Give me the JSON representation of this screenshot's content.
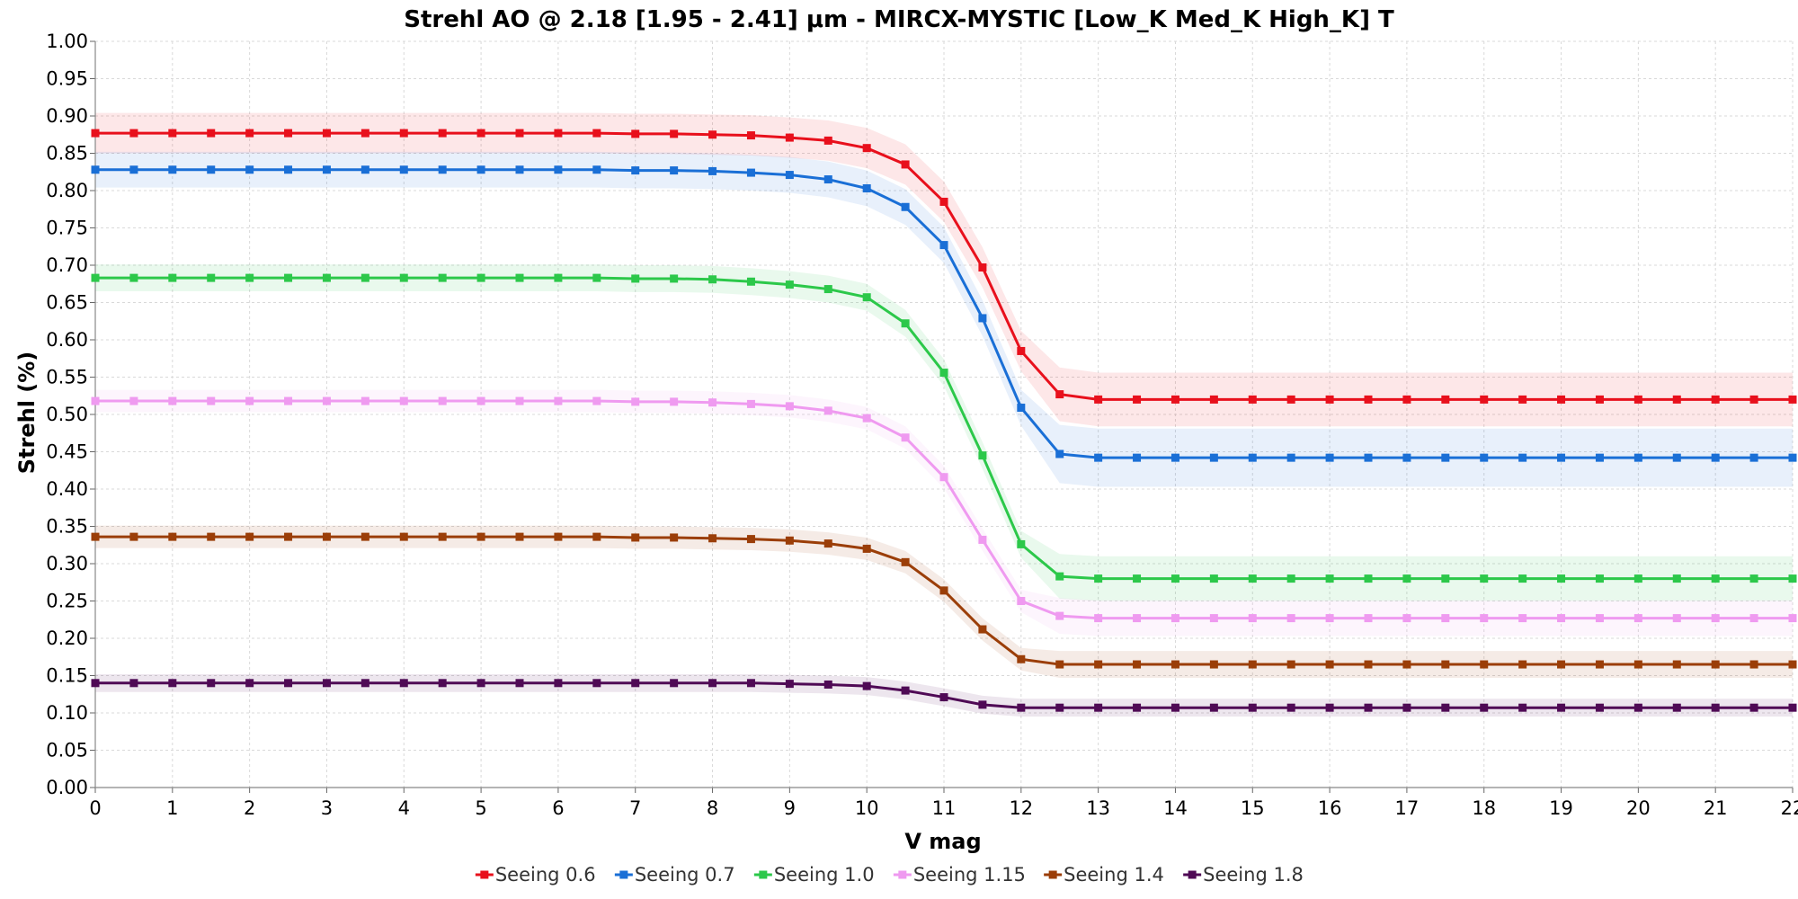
{
  "chart_data": {
    "type": "line",
    "title": "Strehl AO @ 2.18 [1.95 - 2.41] μm - MIRCX-MYSTIC [Low_K Med_K High_K] T",
    "xlabel": "V mag",
    "ylabel": "Strehl (%)",
    "xlim": [
      0,
      22
    ],
    "ylim": [
      0,
      1.0
    ],
    "x_ticks": [
      "0",
      "1",
      "2",
      "3",
      "4",
      "5",
      "6",
      "7",
      "8",
      "9",
      "10",
      "11",
      "12",
      "13",
      "14",
      "15",
      "16",
      "17",
      "18",
      "19",
      "20",
      "21",
      "22"
    ],
    "y_ticks": [
      "0.00",
      "0.05",
      "0.10",
      "0.15",
      "0.20",
      "0.25",
      "0.30",
      "0.35",
      "0.40",
      "0.45",
      "0.50",
      "0.55",
      "0.60",
      "0.65",
      "0.70",
      "0.75",
      "0.80",
      "0.85",
      "0.90",
      "0.95",
      "1.00"
    ],
    "grid": true,
    "legend_position": "bottom-center",
    "x": [
      0,
      0.5,
      1,
      1.5,
      2,
      2.5,
      3,
      3.5,
      4,
      4.5,
      5,
      5.5,
      6,
      6.5,
      7,
      7.5,
      8,
      8.5,
      9,
      9.5,
      10,
      10.5,
      11,
      11.5,
      12,
      12.5,
      13,
      13.5,
      14,
      14.5,
      15,
      15.5,
      16,
      16.5,
      17,
      17.5,
      18,
      18.5,
      19,
      19.5,
      20,
      20.5,
      21,
      21.5,
      22
    ],
    "series": [
      {
        "name": "Seeing 0.6",
        "color": "#e8101c",
        "band": [
          0.045,
          0.06
        ],
        "values": [
          0.877,
          0.877,
          0.877,
          0.877,
          0.877,
          0.877,
          0.877,
          0.877,
          0.877,
          0.877,
          0.877,
          0.877,
          0.877,
          0.877,
          0.876,
          0.876,
          0.875,
          0.874,
          0.871,
          0.867,
          0.857,
          0.835,
          0.785,
          0.697,
          0.585,
          0.527,
          0.52,
          0.52,
          0.52,
          0.52,
          0.52,
          0.52,
          0.52,
          0.52,
          0.52,
          0.52,
          0.52,
          0.52,
          0.52,
          0.52,
          0.52,
          0.52,
          0.52,
          0.52,
          0.52
        ]
      },
      {
        "name": "Seeing 0.7",
        "color": "#1a6fd6",
        "band": [
          0.04,
          0.065
        ],
        "values": [
          0.828,
          0.828,
          0.828,
          0.828,
          0.828,
          0.828,
          0.828,
          0.828,
          0.828,
          0.828,
          0.828,
          0.828,
          0.828,
          0.828,
          0.827,
          0.827,
          0.826,
          0.824,
          0.821,
          0.815,
          0.803,
          0.778,
          0.727,
          0.629,
          0.509,
          0.447,
          0.442,
          0.442,
          0.442,
          0.442,
          0.442,
          0.442,
          0.442,
          0.442,
          0.442,
          0.442,
          0.442,
          0.442,
          0.442,
          0.442,
          0.442,
          0.442,
          0.442,
          0.442,
          0.442
        ]
      },
      {
        "name": "Seeing 1.0",
        "color": "#2cc84a",
        "band": [
          0.03,
          0.05
        ],
        "values": [
          0.683,
          0.683,
          0.683,
          0.683,
          0.683,
          0.683,
          0.683,
          0.683,
          0.683,
          0.683,
          0.683,
          0.683,
          0.683,
          0.683,
          0.682,
          0.682,
          0.681,
          0.678,
          0.674,
          0.668,
          0.657,
          0.622,
          0.556,
          0.445,
          0.326,
          0.283,
          0.28,
          0.28,
          0.28,
          0.28,
          0.28,
          0.28,
          0.28,
          0.28,
          0.28,
          0.28,
          0.28,
          0.28,
          0.28,
          0.28,
          0.28,
          0.28,
          0.28,
          0.28,
          0.28
        ]
      },
      {
        "name": "Seeing 1.15",
        "color": "#ef9af0",
        "band": [
          0.025,
          0.04
        ],
        "values": [
          0.518,
          0.518,
          0.518,
          0.518,
          0.518,
          0.518,
          0.518,
          0.518,
          0.518,
          0.518,
          0.518,
          0.518,
          0.518,
          0.518,
          0.517,
          0.517,
          0.516,
          0.514,
          0.511,
          0.505,
          0.495,
          0.469,
          0.416,
          0.332,
          0.25,
          0.23,
          0.227,
          0.227,
          0.227,
          0.227,
          0.227,
          0.227,
          0.227,
          0.227,
          0.227,
          0.227,
          0.227,
          0.227,
          0.227,
          0.227,
          0.227,
          0.227,
          0.227,
          0.227,
          0.227
        ]
      },
      {
        "name": "Seeing 1.4",
        "color": "#9b3e08",
        "band": [
          0.025,
          0.03
        ],
        "values": [
          0.336,
          0.336,
          0.336,
          0.336,
          0.336,
          0.336,
          0.336,
          0.336,
          0.336,
          0.336,
          0.336,
          0.336,
          0.336,
          0.336,
          0.335,
          0.335,
          0.334,
          0.333,
          0.331,
          0.327,
          0.32,
          0.302,
          0.264,
          0.212,
          0.172,
          0.165,
          0.165,
          0.165,
          0.165,
          0.165,
          0.165,
          0.165,
          0.165,
          0.165,
          0.165,
          0.165,
          0.165,
          0.165,
          0.165,
          0.165,
          0.165,
          0.165,
          0.165,
          0.165,
          0.165
        ]
      },
      {
        "name": "Seeing 1.8",
        "color": "#4f0a55",
        "band": [
          0.02,
          0.02
        ],
        "values": [
          0.14,
          0.14,
          0.14,
          0.14,
          0.14,
          0.14,
          0.14,
          0.14,
          0.14,
          0.14,
          0.14,
          0.14,
          0.14,
          0.14,
          0.14,
          0.14,
          0.14,
          0.14,
          0.139,
          0.138,
          0.136,
          0.13,
          0.121,
          0.111,
          0.107,
          0.107,
          0.107,
          0.107,
          0.107,
          0.107,
          0.107,
          0.107,
          0.107,
          0.107,
          0.107,
          0.107,
          0.107,
          0.107,
          0.107,
          0.107,
          0.107,
          0.107,
          0.107,
          0.107,
          0.107
        ]
      }
    ]
  }
}
